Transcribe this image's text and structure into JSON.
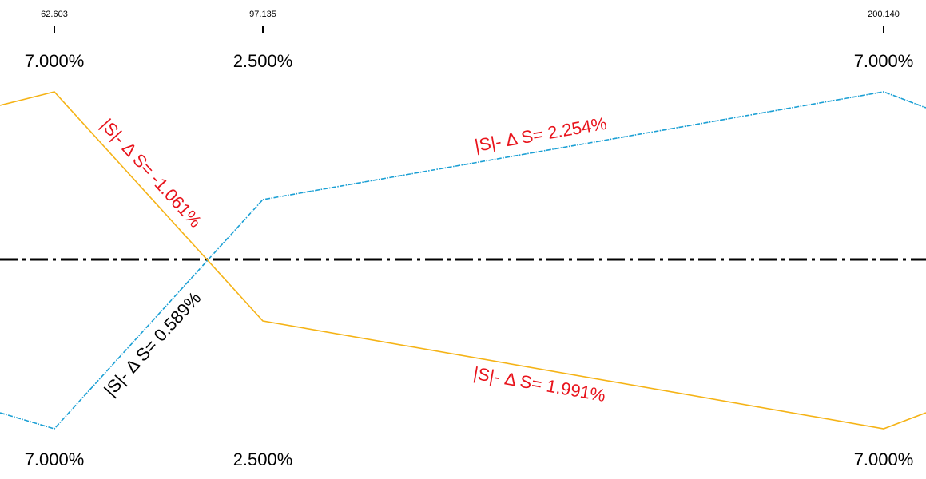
{
  "stations": [
    {
      "label": "62.603",
      "top": "7.000%",
      "bottom": "7.000%"
    },
    {
      "label": "97.135",
      "top": "2.500%",
      "bottom": "2.500%"
    },
    {
      "label": "200.140",
      "top": "7.000%",
      "bottom": "7.000%"
    }
  ],
  "annotations": [
    "|S|- Δ S= -1.061%",
    "|S|- Δ S= 0.589%",
    "|S|- Δ S= 2.254%",
    "|S|- Δ S= 1.991%"
  ]
}
